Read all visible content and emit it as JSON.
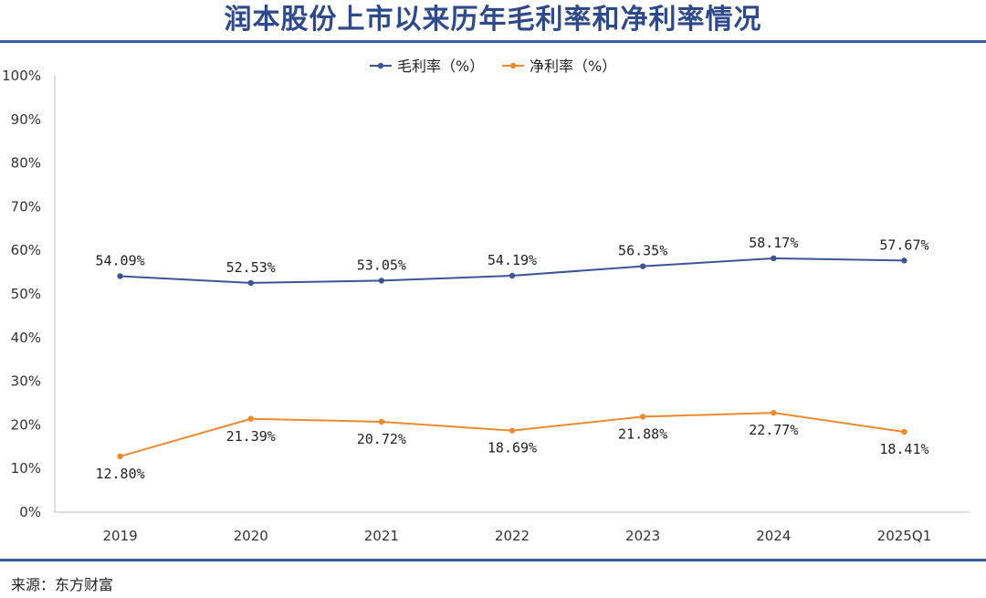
{
  "title": "润本股份上市以来历年毛利率和净利率情况",
  "source": "来源：东方财富",
  "chart_data": {
    "type": "line",
    "categories": [
      "2019",
      "2020",
      "2021",
      "2022",
      "2023",
      "2024",
      "2025Q1"
    ],
    "series": [
      {
        "name": "毛利率（%）",
        "color": "#3d5496",
        "values": [
          54.09,
          52.53,
          53.05,
          54.19,
          56.35,
          58.17,
          57.67
        ],
        "labels": [
          "54.09%",
          "52.53%",
          "53.05%",
          "54.19%",
          "56.35%",
          "58.17%",
          "57.67%"
        ]
      },
      {
        "name": "净利率（%）",
        "color": "#ee8a2e",
        "values": [
          12.8,
          21.39,
          20.72,
          18.69,
          21.88,
          22.77,
          18.41
        ],
        "labels": [
          "12.80%",
          "21.39%",
          "20.72%",
          "18.69%",
          "21.88%",
          "22.77%",
          "18.41%"
        ]
      }
    ],
    "ylim": [
      0,
      100
    ],
    "yticks": [
      "0%",
      "10%",
      "20%",
      "30%",
      "40%",
      "50%",
      "60%",
      "70%",
      "80%",
      "90%",
      "100%"
    ],
    "grid": false,
    "legend": "top-center"
  }
}
